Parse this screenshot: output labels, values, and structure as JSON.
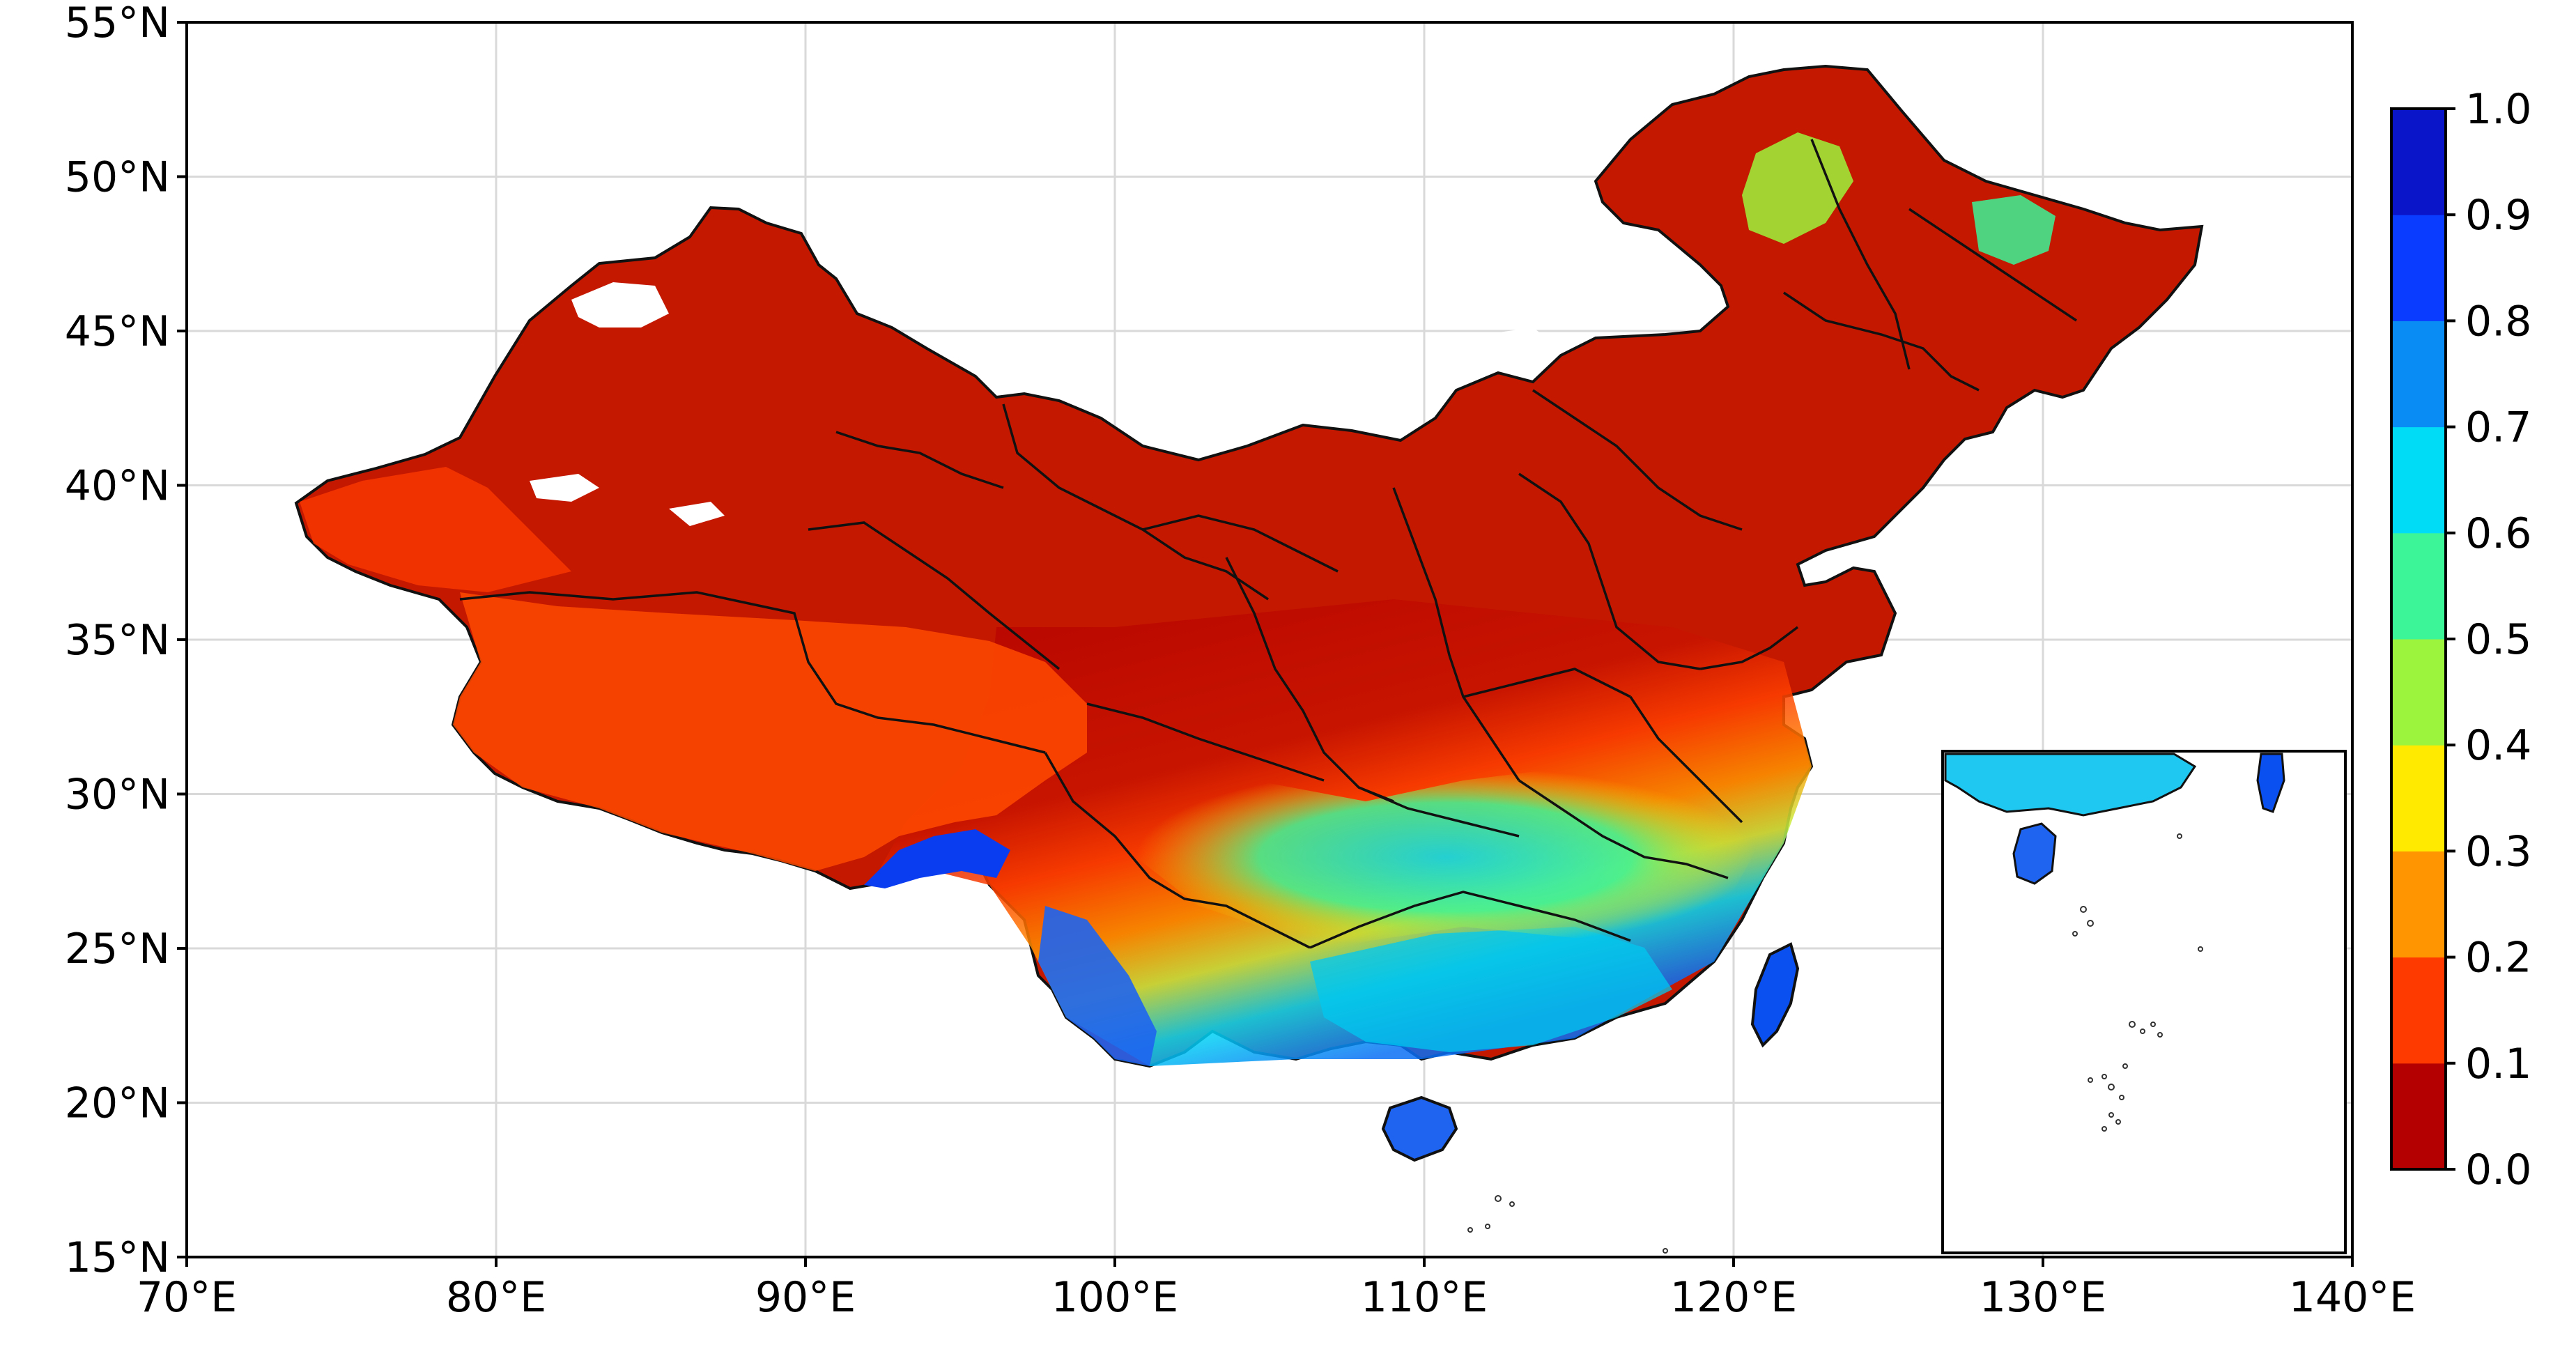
{
  "map": {
    "extent": {
      "lon_min": 70,
      "lon_max": 140,
      "lat_min": 15,
      "lat_max": 55
    },
    "grid": true,
    "x_ticks": [
      "70°E",
      "80°E",
      "90°E",
      "100°E",
      "110°E",
      "120°E",
      "130°E",
      "140°E"
    ],
    "y_ticks": [
      "15°N",
      "20°N",
      "25°N",
      "30°N",
      "35°N",
      "40°N",
      "45°N",
      "50°N",
      "55°N"
    ],
    "inset": "South China Sea islands, bottom-right"
  },
  "colorbar": {
    "ticks": [
      "0.0",
      "0.1",
      "0.2",
      "0.3",
      "0.4",
      "0.5",
      "0.6",
      "0.7",
      "0.8",
      "0.9",
      "1.0"
    ],
    "colors": [
      "#b40000",
      "#ff3a00",
      "#ff9500",
      "#ffea00",
      "#9cf53c",
      "#3cf598",
      "#00dcf5",
      "#0a8cf5",
      "#0a3cff",
      "#0a14c8"
    ]
  }
}
